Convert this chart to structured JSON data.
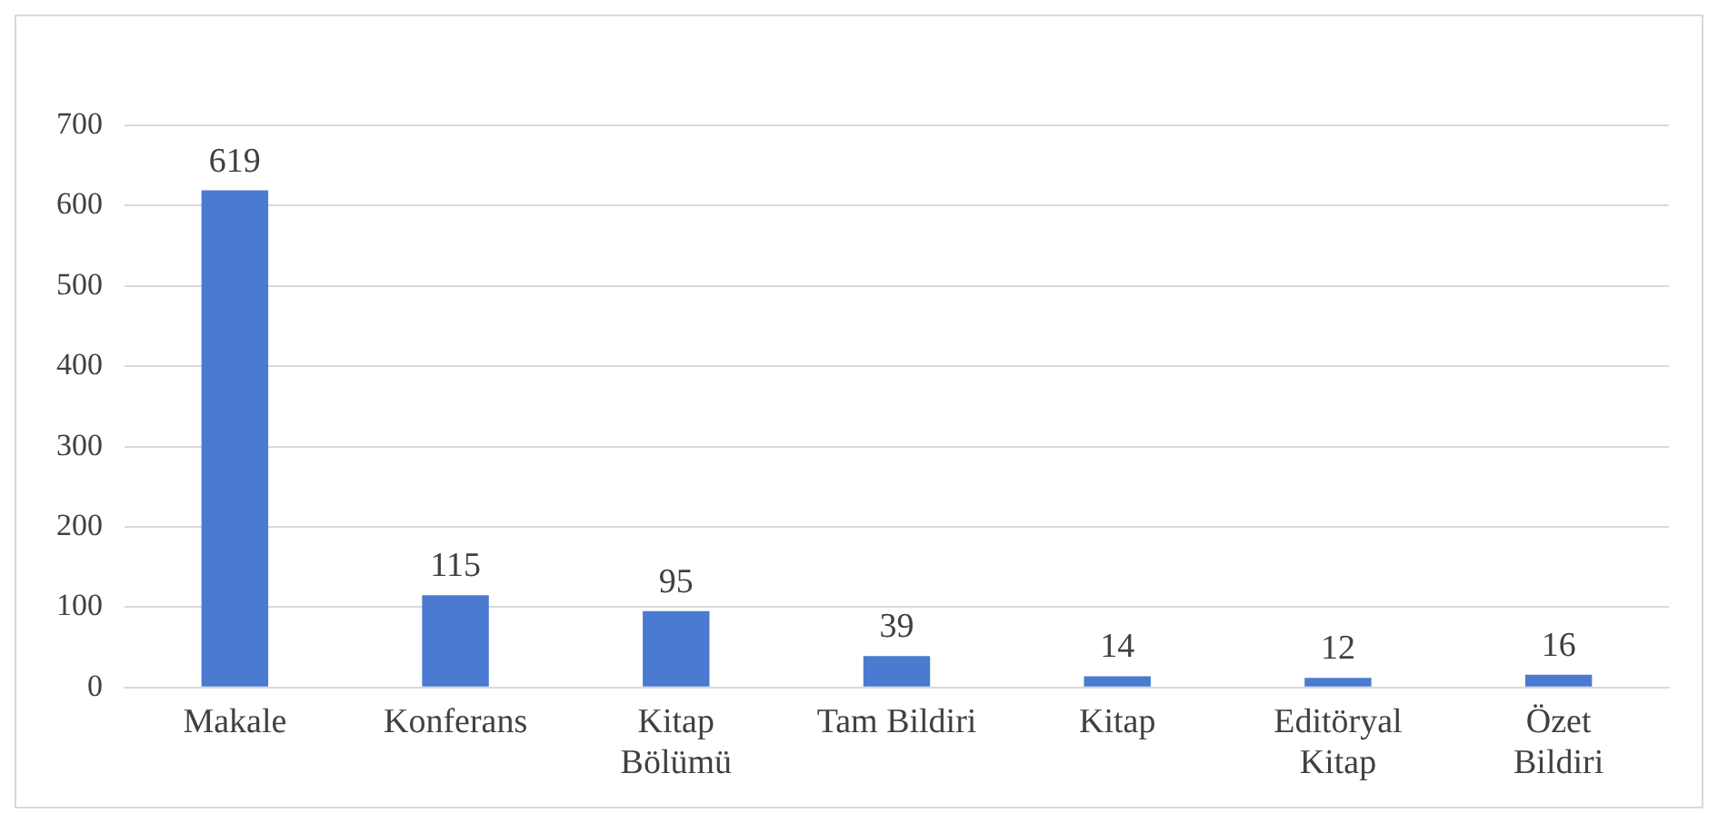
{
  "chart_data": {
    "type": "bar",
    "categories": [
      "Makale",
      "Konferans",
      "Kitap Bölümü",
      "Tam Bildiri",
      "Kitap",
      "Editöryal Kitap",
      "Özet Bildiri"
    ],
    "values": [
      619,
      115,
      95,
      39,
      14,
      12,
      16
    ],
    "color": "#4a7bd0",
    "ylim": [
      0,
      700
    ],
    "yticks": [
      0,
      100,
      200,
      300,
      400,
      500,
      600,
      700
    ],
    "grid": "y",
    "data_labels": true,
    "legend": false
  }
}
